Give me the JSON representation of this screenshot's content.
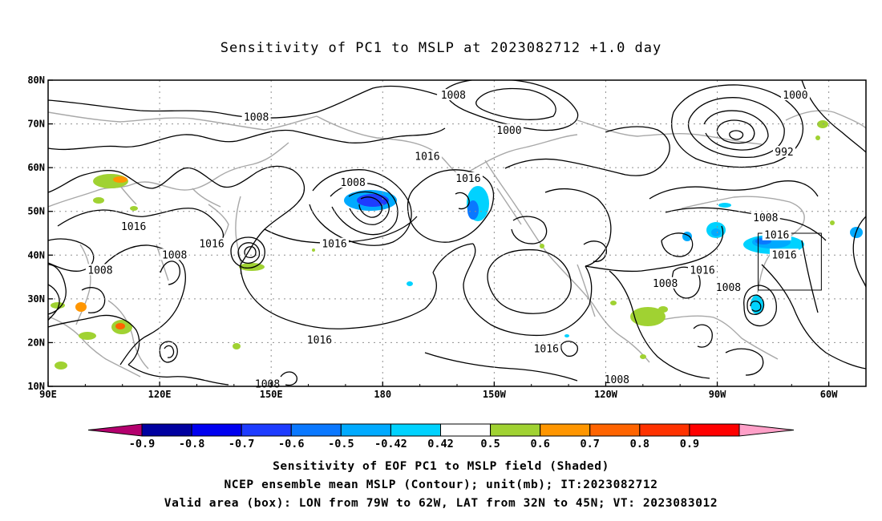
{
  "title": "Sensitivity of PC1 to MSLP at 2023082712 +1.0 day",
  "map": {
    "lat_ticks": [
      "80N",
      "70N",
      "60N",
      "50N",
      "40N",
      "30N",
      "20N",
      "10N"
    ],
    "lon_ticks": [
      "90E",
      "120E",
      "150E",
      "180",
      "150W",
      "120W",
      "90W",
      "60W"
    ],
    "contour_labels": [
      {
        "text": "1008",
        "lon": 146,
        "lat": 71.5
      },
      {
        "text": "1008",
        "lon": -161,
        "lat": 76.5
      },
      {
        "text": "1000",
        "lon": -146,
        "lat": 68.5
      },
      {
        "text": "1016",
        "lon": -168,
        "lat": 62.5
      },
      {
        "text": "1016",
        "lon": -157,
        "lat": 57.5
      },
      {
        "text": "1008",
        "lon": 172,
        "lat": 56.5
      },
      {
        "text": "1000",
        "lon": -69,
        "lat": 76.5
      },
      {
        "text": "992",
        "lon": -72,
        "lat": 63.5
      },
      {
        "text": "1008",
        "lon": -77,
        "lat": 48.5
      },
      {
        "text": "1016",
        "lon": -74,
        "lat": 44.5
      },
      {
        "text": "1016",
        "lon": 113,
        "lat": 46.5
      },
      {
        "text": "1016",
        "lon": 134,
        "lat": 42.5
      },
      {
        "text": "1008",
        "lon": 124,
        "lat": 40.0
      },
      {
        "text": "1008",
        "lon": 104,
        "lat": 36.5
      },
      {
        "text": "1016",
        "lon": 167,
        "lat": 42.5
      },
      {
        "text": "1016",
        "lon": -94,
        "lat": 36.5
      },
      {
        "text": "1008",
        "lon": -104,
        "lat": 33.5
      },
      {
        "text": "1008",
        "lon": -87,
        "lat": 32.5
      },
      {
        "text": "1016",
        "lon": -72,
        "lat": 40.0
      },
      {
        "text": "1016",
        "lon": 163,
        "lat": 20.5
      },
      {
        "text": "1016",
        "lon": -136,
        "lat": 18.5
      },
      {
        "text": "1008",
        "lon": -117,
        "lat": 11.5
      },
      {
        "text": "1008",
        "lon": 149,
        "lat": 10.5
      }
    ],
    "valid_box": {
      "lon_w": -79,
      "lon_e": -62,
      "lat_s": 32,
      "lat_n": 45
    }
  },
  "colorbar": {
    "labels": [
      "-0.9",
      "-0.8",
      "-0.7",
      "-0.6",
      "-0.5",
      "-0.42",
      "0.42",
      "0.5",
      "0.6",
      "0.7",
      "0.8",
      "0.9"
    ],
    "colors": [
      "#0000a0",
      "#0000f0",
      "#1e3cff",
      "#0a78ff",
      "#00aaff",
      "#00d2ff",
      "#ffffff",
      "#a0d232",
      "#ff9600",
      "#ff6400",
      "#ff3200",
      "#ff0000"
    ],
    "below_color": "#b4006e",
    "above_color": "#ffa0c8"
  },
  "captions": {
    "line1": "Sensitivity of EOF PC1 to MSLP field (Shaded)",
    "line2": "NCEP ensemble mean MSLP (Contour); unit(mb); IT:2023082712",
    "line3": "Valid area (box): LON from 79W to 62W, LAT from 32N to 45N; VT: 2023083012"
  }
}
